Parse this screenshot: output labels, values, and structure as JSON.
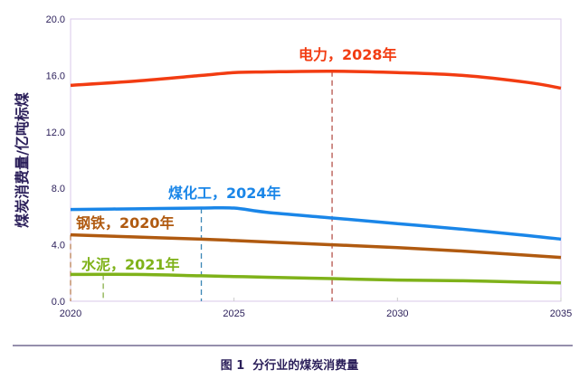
{
  "chart_data": {
    "type": "line",
    "title": "",
    "xlabel": "",
    "ylabel": "煤炭消费量/亿吨标煤",
    "xlim": [
      2020,
      2035
    ],
    "ylim": [
      0,
      20
    ],
    "xticks": [
      "2020",
      "2025",
      "2030",
      "2035"
    ],
    "yticks": [
      "0.0",
      "4.0",
      "8.0",
      "12.0",
      "16.0",
      "20.0"
    ],
    "grid": false,
    "x": [
      2020,
      2022,
      2024,
      2025,
      2026,
      2028,
      2030,
      2032,
      2034,
      2035
    ],
    "series": [
      {
        "name": "电力",
        "color": "#f23c12",
        "peak_year": 2028,
        "annotation": "电力，2028年",
        "values": [
          15.3,
          15.6,
          16.0,
          16.2,
          16.25,
          16.3,
          16.2,
          16.0,
          15.5,
          15.1
        ]
      },
      {
        "name": "煤化工",
        "color": "#1a86e8",
        "peak_year": 2024,
        "annotation": "煤化工，2024年",
        "values": [
          6.5,
          6.55,
          6.6,
          6.6,
          6.3,
          5.9,
          5.5,
          5.1,
          4.65,
          4.4
        ]
      },
      {
        "name": "钢铁",
        "color": "#b05a10",
        "peak_year": 2020,
        "annotation": "钢铁，2020年",
        "values": [
          4.7,
          4.55,
          4.4,
          4.3,
          4.2,
          4.0,
          3.8,
          3.55,
          3.25,
          3.1
        ]
      },
      {
        "name": "水泥",
        "color": "#7fb21a",
        "peak_year": 2021,
        "annotation": "水泥，2021年",
        "values": [
          1.9,
          1.9,
          1.8,
          1.75,
          1.7,
          1.6,
          1.5,
          1.45,
          1.35,
          1.3
        ]
      }
    ]
  },
  "caption": "图 1  分行业的煤炭消费量"
}
